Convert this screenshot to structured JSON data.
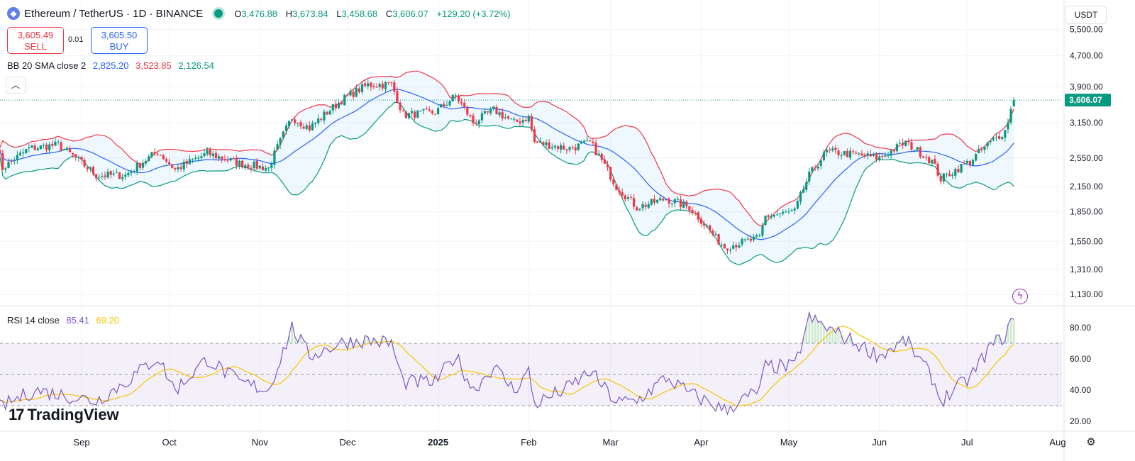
{
  "header": {
    "symbol_icon": "ethereum-icon",
    "title": "Ethereum / TetherUS · 1D · BINANCE",
    "ohlc": {
      "o_label": "O",
      "o": "3,476.88",
      "h_label": "H",
      "h": "3,673.84",
      "l_label": "L",
      "l": "3,458.68",
      "c_label": "C",
      "c": "3,606.07",
      "change": "+129.20 (+3.72%)"
    }
  },
  "trade": {
    "sell_price": "3,605.49",
    "sell_label": "SELL",
    "spread": "0.01",
    "buy_price": "3,605.50",
    "buy_label": "BUY"
  },
  "indicators": {
    "bb": {
      "label": "BB 20 SMA close 2",
      "basis": "2,825.20",
      "upper": "3,523.85",
      "lower": "2,126.54"
    },
    "rsi": {
      "label": "RSI 14 close",
      "value": "85.41",
      "ma": "69.20"
    }
  },
  "controls": {
    "currency": "USDT",
    "collapse_icon": "chevron-up-icon",
    "bolt_icon": "lightning-icon",
    "settings_icon": "gear-icon"
  },
  "branding": {
    "logo_text": "TradingView"
  },
  "colors": {
    "up": "#089981",
    "down": "#f23645",
    "bb_basis": "#2962ff",
    "bb_upper": "#f23645",
    "bb_lower": "#089981",
    "bb_fill": "#2196f3",
    "rsi_line": "#7e57c2",
    "rsi_ma": "#f7c600",
    "rsi_band": "#7e57c2"
  },
  "chart_data": {
    "type": "candlestick",
    "price_axis": {
      "ticks": [
        1130,
        1310,
        1550,
        1850,
        2150,
        2550,
        3150,
        3900,
        4700,
        5500
      ],
      "tick_labels": [
        "1,130.00",
        "1,310.00",
        "1,550.00",
        "1,850.00",
        "2,150.00",
        "2,550.00",
        "3,150.00",
        "3,900.00",
        "4,700.00",
        "5,500.00"
      ],
      "scale": "log",
      "last_price": 3606.07,
      "last_price_label": "3,606.07"
    },
    "time_axis": {
      "labels": [
        "Sep",
        "Oct",
        "Nov",
        "Dec",
        "2025",
        "Feb",
        "Mar",
        "Apr",
        "May",
        "Jun",
        "Jul",
        "Aug"
      ],
      "dates": [
        "2024-09-01",
        "2024-10-01",
        "2024-11-01",
        "2024-12-01",
        "2025-01-01",
        "2025-02-01",
        "2025-03-01",
        "2025-04-01",
        "2025-05-01",
        "2025-06-01",
        "2025-07-01",
        "2025-08-01"
      ],
      "first_date": "2024-08-03",
      "last_date": "2025-07-17"
    },
    "close_keypoints": [
      [
        "2024-08-03",
        2750
      ],
      [
        "2024-08-05",
        2400
      ],
      [
        "2024-08-14",
        2700
      ],
      [
        "2024-08-24",
        2760
      ],
      [
        "2024-09-06",
        2300
      ],
      [
        "2024-09-16",
        2300
      ],
      [
        "2024-09-27",
        2650
      ],
      [
        "2024-10-03",
        2380
      ],
      [
        "2024-10-14",
        2620
      ],
      [
        "2024-10-25",
        2470
      ],
      [
        "2024-11-04",
        2400
      ],
      [
        "2024-11-12",
        3250
      ],
      [
        "2024-11-18",
        3050
      ],
      [
        "2024-11-30",
        3650
      ],
      [
        "2024-12-08",
        3950
      ],
      [
        "2024-12-16",
        3960
      ],
      [
        "2024-12-20",
        3300
      ],
      [
        "2024-12-31",
        3350
      ],
      [
        "2025-01-07",
        3700
      ],
      [
        "2025-01-13",
        3150
      ],
      [
        "2025-01-20",
        3400
      ],
      [
        "2025-01-27",
        3150
      ],
      [
        "2025-02-01",
        3250
      ],
      [
        "2025-02-03",
        2800
      ],
      [
        "2025-02-15",
        2700
      ],
      [
        "2025-02-22",
        2800
      ],
      [
        "2025-03-03",
        2150
      ],
      [
        "2025-03-10",
        1900
      ],
      [
        "2025-03-20",
        2000
      ],
      [
        "2025-03-28",
        1900
      ],
      [
        "2025-04-06",
        1580
      ],
      [
        "2025-04-09",
        1500
      ],
      [
        "2025-04-21",
        1580
      ],
      [
        "2025-04-23",
        1800
      ],
      [
        "2025-05-03",
        1850
      ],
      [
        "2025-05-08",
        2300
      ],
      [
        "2025-05-14",
        2650
      ],
      [
        "2025-05-24",
        2600
      ],
      [
        "2025-06-01",
        2550
      ],
      [
        "2025-06-10",
        2800
      ],
      [
        "2025-06-19",
        2500
      ],
      [
        "2025-06-22",
        2250
      ],
      [
        "2025-07-02",
        2500
      ],
      [
        "2025-07-09",
        2800
      ],
      [
        "2025-07-14",
        3000
      ],
      [
        "2025-07-17",
        3606
      ]
    ],
    "bollinger": {
      "period": 20,
      "stddev": 2,
      "source": "close",
      "upper_last": 3523.85,
      "basis_last": 2825.2,
      "lower_last": 2126.54
    },
    "rsi": {
      "period": 14,
      "last": 85.41,
      "ma_last": 69.2,
      "band": [
        30,
        70
      ],
      "axis_ticks": [
        20,
        40,
        60,
        80
      ],
      "tick_labels": [
        "20.00",
        "40.00",
        "60.00",
        "80.00"
      ],
      "rsi_keypoints": [
        [
          "2024-08-03",
          28
        ],
        [
          "2024-08-16",
          40
        ],
        [
          "2024-09-06",
          33
        ],
        [
          "2024-09-16",
          45
        ],
        [
          "2024-09-27",
          61
        ],
        [
          "2024-10-03",
          40
        ],
        [
          "2024-10-14",
          60
        ],
        [
          "2024-10-25",
          45
        ],
        [
          "2024-11-04",
          40
        ],
        [
          "2024-11-12",
          80
        ],
        [
          "2024-11-18",
          62
        ],
        [
          "2024-11-30",
          71
        ],
        [
          "2024-12-08",
          72
        ],
        [
          "2024-12-16",
          70
        ],
        [
          "2024-12-20",
          45
        ],
        [
          "2024-12-31",
          45
        ],
        [
          "2025-01-07",
          62
        ],
        [
          "2025-01-13",
          40
        ],
        [
          "2025-01-20",
          55
        ],
        [
          "2025-01-27",
          40
        ],
        [
          "2025-02-01",
          52
        ],
        [
          "2025-02-03",
          31
        ],
        [
          "2025-02-15",
          42
        ],
        [
          "2025-02-22",
          52
        ],
        [
          "2025-03-03",
          32
        ],
        [
          "2025-03-10",
          33
        ],
        [
          "2025-03-20",
          48
        ],
        [
          "2025-03-28",
          38
        ],
        [
          "2025-04-06",
          30
        ],
        [
          "2025-04-09",
          27
        ],
        [
          "2025-04-21",
          40
        ],
        [
          "2025-04-23",
          55
        ],
        [
          "2025-05-03",
          55
        ],
        [
          "2025-05-08",
          86
        ],
        [
          "2025-05-14",
          80
        ],
        [
          "2025-05-24",
          70
        ],
        [
          "2025-06-01",
          62
        ],
        [
          "2025-06-10",
          72
        ],
        [
          "2025-06-19",
          48
        ],
        [
          "2025-06-22",
          33
        ],
        [
          "2025-07-02",
          48
        ],
        [
          "2025-07-09",
          68
        ],
        [
          "2025-07-14",
          75
        ],
        [
          "2025-07-17",
          85.41
        ]
      ]
    }
  }
}
